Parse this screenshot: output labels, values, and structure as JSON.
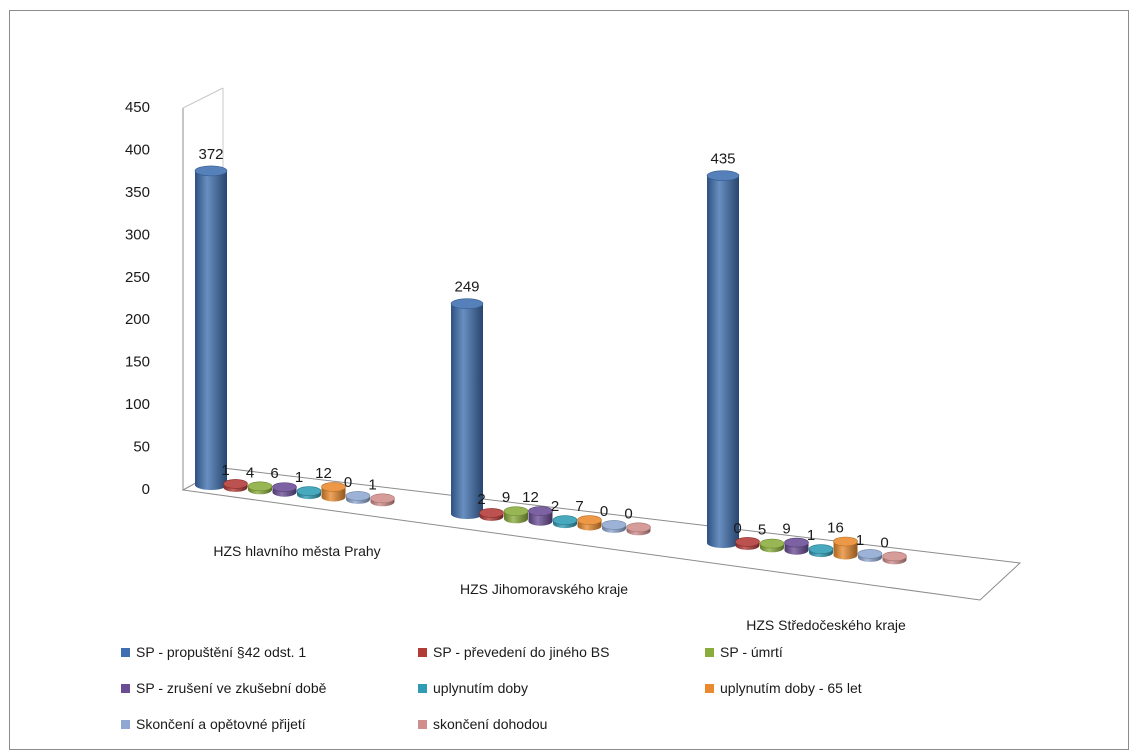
{
  "chart_data": {
    "type": "bar",
    "categories": [
      "HZS hlavního města Prahy",
      "HZS Jihomoravského kraje",
      "HZS Středočeského kraje"
    ],
    "series": [
      {
        "name": "SP - propuštění §42 odst. 1",
        "color": "#3f6fb0",
        "values": [
          372,
          249,
          435
        ]
      },
      {
        "name": "SP - převedení do jiného BS",
        "color": "#b23a37",
        "values": [
          1,
          2,
          0
        ]
      },
      {
        "name": "SP - úmrtí",
        "color": "#8aac3c",
        "values": [
          4,
          9,
          5
        ]
      },
      {
        "name": "SP - zrušení ve zkušební době",
        "color": "#6a4d95",
        "values": [
          6,
          12,
          9
        ]
      },
      {
        "name": "uplynutím doby",
        "color": "#2f9cb4",
        "values": [
          1,
          2,
          1
        ]
      },
      {
        "name": "uplynutím doby - 65 let",
        "color": "#ea8a2e",
        "values": [
          12,
          7,
          16
        ]
      },
      {
        "name": "Skončení a opětovné přijetí",
        "color": "#8fa7d1",
        "values": [
          0,
          0,
          1
        ]
      },
      {
        "name": "skončení dohodou",
        "color": "#d08e8c",
        "values": [
          1,
          0,
          0
        ]
      }
    ],
    "ylim": [
      0,
      450
    ],
    "yticks": [
      "0",
      "50",
      "100",
      "150",
      "200",
      "250",
      "300",
      "350",
      "400",
      "450"
    ],
    "legend_position": "bottom"
  }
}
